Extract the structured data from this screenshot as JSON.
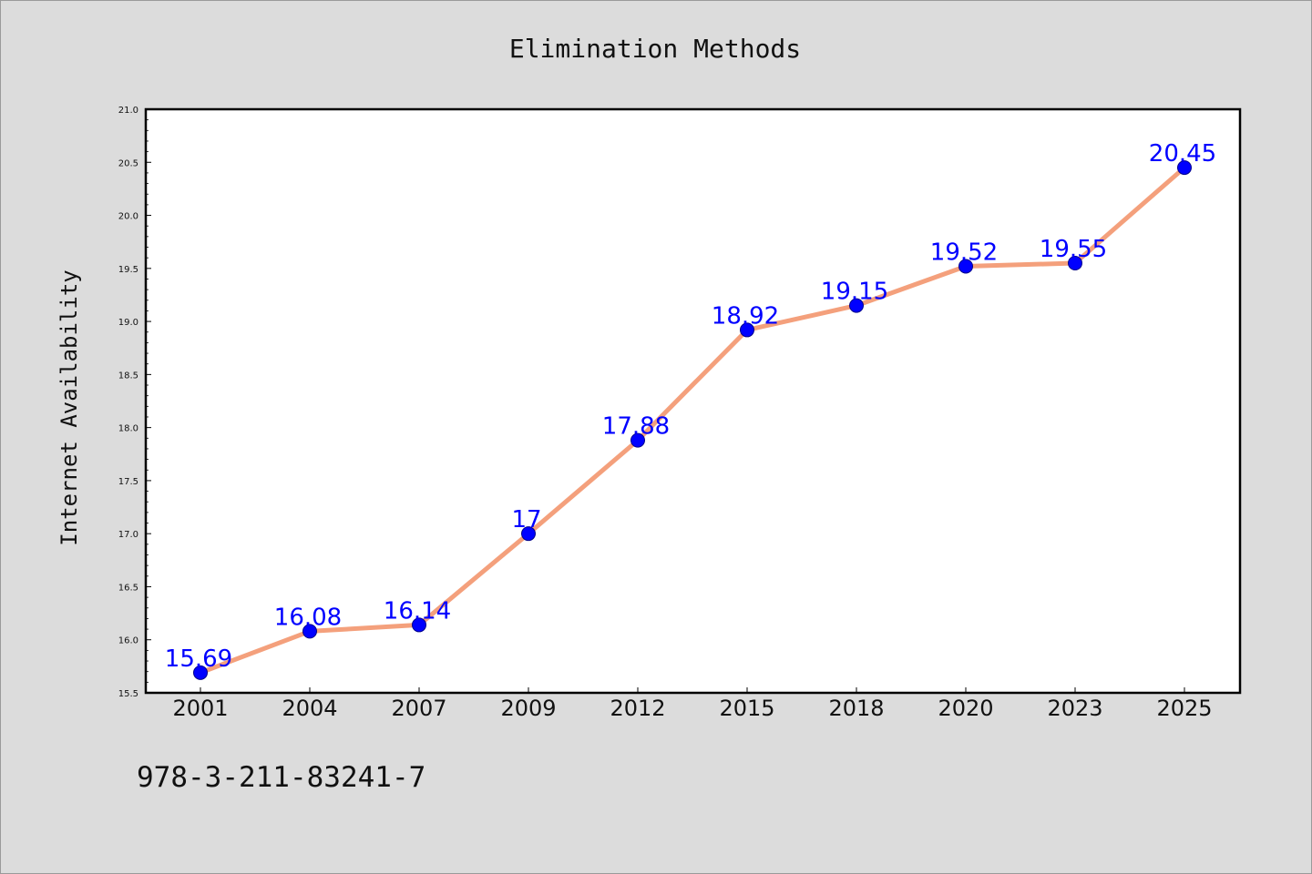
{
  "chart_data": {
    "type": "line",
    "title": "Elimination Methods",
    "xlabel": "",
    "ylabel": "Internet Availability",
    "categories": [
      "2001",
      "2004",
      "2007",
      "2009",
      "2012",
      "2015",
      "2018",
      "2020",
      "2023",
      "2025"
    ],
    "series": [
      {
        "values": [
          15.69,
          16.08,
          16.14,
          17,
          17.88,
          18.92,
          19.15,
          19.52,
          19.55,
          20.45
        ],
        "data_labels": [
          "15.69",
          "16.08",
          "16.14",
          "17",
          "17.88",
          "18.92",
          "19.15",
          "19.52",
          "19.55",
          "20.45"
        ]
      }
    ],
    "ylim": [
      15.5,
      21.0
    ],
    "yticks": [
      "15.5",
      "16.0",
      "16.5",
      "17.0",
      "17.5",
      "18.0",
      "18.5",
      "19.0",
      "19.5",
      "20.0",
      "20.5",
      "21.0"
    ],
    "grid": false,
    "legend": "none",
    "colors": {
      "line": "#f4a07c",
      "marker": "#0000ff",
      "marker_edge": "#00008b",
      "data_label": "#0000ff",
      "plot_background": "#ffffff",
      "figure_background": "#dcdcdc"
    }
  },
  "footer": {
    "isbn": "978-3-211-83241-7"
  }
}
